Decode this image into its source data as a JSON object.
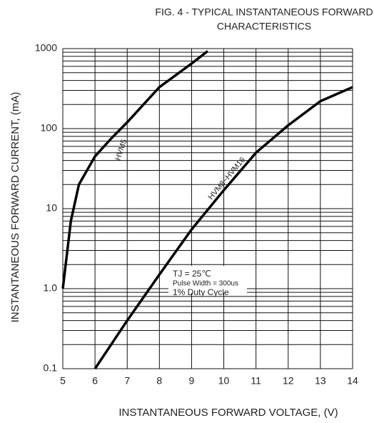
{
  "chart_data": {
    "type": "line",
    "title": [
      "FIG. 4 - TYPICAL INSTANTANEOUS FORWARD",
      "CHARACTERISTICS"
    ],
    "x_label": "INSTANTANEOUS FORWARD VOLTAGE, (V)",
    "y_label": "INSTANTANEOUS FORWARD CURRENT, (mA)",
    "y_log": true,
    "grid": true,
    "xlim": [
      5,
      14
    ],
    "xticks": [
      5,
      6,
      7,
      8,
      9,
      10,
      11,
      12,
      13,
      14
    ],
    "ylim": [
      0.1,
      1000
    ],
    "yticks": [
      {
        "value": 0.1,
        "label": "0.1"
      },
      {
        "value": 1,
        "label": "1.0"
      },
      10,
      100,
      1000
    ],
    "y_minor_ticks": [
      0.2,
      0.3,
      0.4,
      0.5,
      0.6,
      0.7,
      0.8,
      0.9,
      2,
      3,
      4,
      5,
      6,
      7,
      8,
      9,
      20,
      30,
      40,
      50,
      60,
      70,
      80,
      90,
      200,
      300,
      400,
      500,
      600,
      700,
      800,
      900
    ],
    "series": [
      {
        "name": "HVM5",
        "color": "#000000",
        "x": [
          5,
          5.25,
          5.5,
          6,
          6.5,
          7,
          8,
          9,
          9.5
        ],
        "values": [
          1,
          7,
          20,
          45,
          75,
          120,
          330,
          650,
          930
        ]
      },
      {
        "name": "HVM8~HVM16",
        "color": "#000000",
        "x": [
          6,
          7,
          8,
          9,
          10,
          11,
          12,
          13,
          14
        ],
        "values": [
          0.1,
          0.4,
          1.5,
          5.5,
          17,
          50,
          110,
          220,
          330
        ]
      }
    ],
    "annotations": [
      "TJ = 25℃",
      "Pulse Width = 300us",
      "1% Duty Cycle"
    ]
  }
}
